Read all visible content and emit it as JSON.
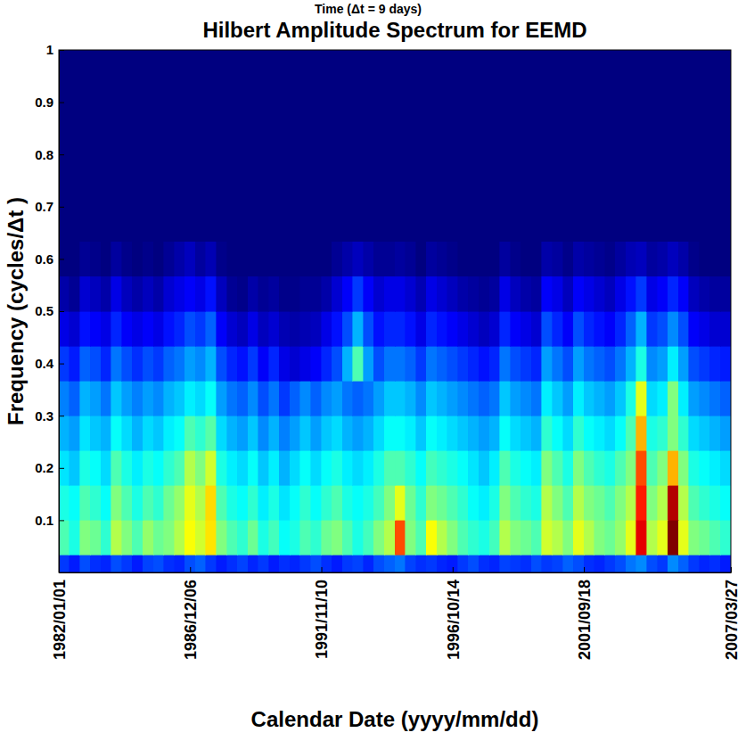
{
  "chart_data": {
    "type": "heatmap",
    "title": "Hilbert Amplitude Spectrum for EEMD",
    "annotation": "Time (Δt = 9 days)",
    "x_label": "Calendar Date (yyyy/mm/dd)",
    "y_label": "Frequency (cycles/Δt )",
    "color": "jet",
    "zlim": [
      0,
      1
    ],
    "xlim": [
      0,
      1024
    ],
    "xticks": [
      {
        "value": 0,
        "label": "1982/01/01"
      },
      {
        "value": 200,
        "label": "1986/12/06"
      },
      {
        "value": 400,
        "label": "1991/11/10"
      },
      {
        "value": 600,
        "label": "1996/10/14"
      },
      {
        "value": 800,
        "label": "2001/09/18"
      },
      {
        "value": 1024,
        "label": "2007/03/27"
      }
    ],
    "ylim": [
      0,
      1
    ],
    "yticks": [
      0.1,
      0.2,
      0.3,
      0.4,
      0.5,
      0.6,
      0.7,
      0.8,
      0.9,
      1
    ],
    "x_edges": [
      0,
      16,
      32,
      48,
      64,
      80,
      96,
      112,
      128,
      144,
      160,
      176,
      192,
      208,
      224,
      240,
      256,
      272,
      288,
      304,
      320,
      336,
      352,
      368,
      384,
      400,
      416,
      432,
      448,
      464,
      480,
      496,
      512,
      528,
      544,
      560,
      576,
      592,
      608,
      624,
      640,
      656,
      672,
      688,
      704,
      720,
      736,
      752,
      768,
      784,
      800,
      816,
      832,
      848,
      864,
      880,
      896,
      912,
      928,
      944,
      960,
      976,
      992,
      1008,
      1024
    ],
    "y_edges": [
      0,
      0.0333,
      0.1,
      0.1667,
      0.2333,
      0.3,
      0.3667,
      0.4333,
      0.5,
      0.5667,
      0.6333,
      1
    ],
    "z": [
      [
        0.18,
        0.15,
        0.2,
        0.17,
        0.16,
        0.2,
        0.18,
        0.15,
        0.19,
        0.2,
        0.17,
        0.16,
        0.2,
        0.22,
        0.18,
        0.15,
        0.17,
        0.19,
        0.16,
        0.18,
        0.15,
        0.17,
        0.16,
        0.18,
        0.2,
        0.17,
        0.15,
        0.18,
        0.19,
        0.16,
        0.2,
        0.22,
        0.24,
        0.19,
        0.17,
        0.18,
        0.16,
        0.15,
        0.18,
        0.2,
        0.17,
        0.16,
        0.19,
        0.18,
        0.17,
        0.2,
        0.18,
        0.19,
        0.22,
        0.2,
        0.17,
        0.16,
        0.18,
        0.2,
        0.24,
        0.26,
        0.2,
        0.18,
        0.26,
        0.22,
        0.18,
        0.16,
        0.17,
        0.15
      ],
      [
        0.45,
        0.4,
        0.5,
        0.48,
        0.42,
        0.55,
        0.5,
        0.45,
        0.52,
        0.48,
        0.5,
        0.55,
        0.62,
        0.58,
        0.65,
        0.5,
        0.45,
        0.42,
        0.48,
        0.4,
        0.44,
        0.38,
        0.4,
        0.45,
        0.42,
        0.48,
        0.5,
        0.45,
        0.4,
        0.44,
        0.5,
        0.55,
        0.8,
        0.5,
        0.45,
        0.62,
        0.55,
        0.5,
        0.45,
        0.42,
        0.4,
        0.44,
        0.55,
        0.5,
        0.48,
        0.45,
        0.58,
        0.55,
        0.5,
        0.6,
        0.55,
        0.5,
        0.48,
        0.52,
        0.6,
        0.9,
        0.55,
        0.6,
        1.0,
        0.6,
        0.5,
        0.48,
        0.45,
        0.42
      ],
      [
        0.4,
        0.38,
        0.45,
        0.42,
        0.38,
        0.5,
        0.45,
        0.4,
        0.45,
        0.42,
        0.48,
        0.52,
        0.6,
        0.55,
        0.66,
        0.45,
        0.4,
        0.38,
        0.42,
        0.36,
        0.4,
        0.35,
        0.38,
        0.42,
        0.38,
        0.42,
        0.45,
        0.4,
        0.38,
        0.4,
        0.44,
        0.5,
        0.6,
        0.48,
        0.42,
        0.5,
        0.48,
        0.45,
        0.42,
        0.38,
        0.36,
        0.4,
        0.5,
        0.45,
        0.42,
        0.4,
        0.55,
        0.5,
        0.45,
        0.55,
        0.5,
        0.48,
        0.45,
        0.5,
        0.55,
        0.85,
        0.5,
        0.55,
        0.95,
        0.55,
        0.45,
        0.42,
        0.4,
        0.38
      ],
      [
        0.35,
        0.32,
        0.4,
        0.38,
        0.34,
        0.45,
        0.4,
        0.36,
        0.4,
        0.38,
        0.42,
        0.45,
        0.55,
        0.5,
        0.58,
        0.4,
        0.36,
        0.34,
        0.38,
        0.32,
        0.36,
        0.3,
        0.34,
        0.38,
        0.34,
        0.38,
        0.4,
        0.36,
        0.34,
        0.36,
        0.4,
        0.45,
        0.45,
        0.42,
        0.38,
        0.44,
        0.42,
        0.4,
        0.38,
        0.35,
        0.32,
        0.36,
        0.45,
        0.4,
        0.38,
        0.36,
        0.5,
        0.45,
        0.4,
        0.5,
        0.45,
        0.42,
        0.4,
        0.45,
        0.5,
        0.8,
        0.45,
        0.5,
        0.7,
        0.5,
        0.4,
        0.38,
        0.36,
        0.34
      ],
      [
        0.3,
        0.28,
        0.35,
        0.32,
        0.3,
        0.38,
        0.34,
        0.3,
        0.34,
        0.32,
        0.36,
        0.38,
        0.45,
        0.42,
        0.46,
        0.34,
        0.3,
        0.28,
        0.32,
        0.26,
        0.3,
        0.25,
        0.28,
        0.32,
        0.28,
        0.32,
        0.34,
        0.3,
        0.28,
        0.3,
        0.34,
        0.38,
        0.38,
        0.36,
        0.32,
        0.38,
        0.36,
        0.34,
        0.32,
        0.3,
        0.28,
        0.3,
        0.38,
        0.34,
        0.32,
        0.3,
        0.42,
        0.38,
        0.34,
        0.42,
        0.38,
        0.36,
        0.34,
        0.38,
        0.45,
        0.7,
        0.4,
        0.42,
        0.5,
        0.42,
        0.34,
        0.32,
        0.3,
        0.28
      ],
      [
        0.25,
        0.22,
        0.3,
        0.28,
        0.24,
        0.32,
        0.28,
        0.25,
        0.28,
        0.26,
        0.3,
        0.32,
        0.36,
        0.34,
        0.38,
        0.28,
        0.24,
        0.22,
        0.26,
        0.2,
        0.24,
        0.18,
        0.22,
        0.26,
        0.22,
        0.26,
        0.28,
        0.24,
        0.22,
        0.24,
        0.28,
        0.32,
        0.32,
        0.3,
        0.26,
        0.32,
        0.3,
        0.28,
        0.26,
        0.24,
        0.22,
        0.24,
        0.32,
        0.28,
        0.26,
        0.24,
        0.36,
        0.32,
        0.28,
        0.36,
        0.32,
        0.3,
        0.28,
        0.32,
        0.4,
        0.6,
        0.34,
        0.36,
        0.5,
        0.36,
        0.28,
        0.26,
        0.24,
        0.22
      ],
      [
        0.18,
        0.15,
        0.22,
        0.2,
        0.16,
        0.24,
        0.2,
        0.17,
        0.2,
        0.18,
        0.22,
        0.24,
        0.28,
        0.26,
        0.3,
        0.2,
        0.16,
        0.14,
        0.18,
        0.12,
        0.16,
        0.1,
        0.08,
        0.1,
        0.12,
        0.16,
        0.2,
        0.3,
        0.45,
        0.28,
        0.2,
        0.24,
        0.24,
        0.22,
        0.18,
        0.24,
        0.22,
        0.2,
        0.18,
        0.16,
        0.14,
        0.16,
        0.24,
        0.2,
        0.18,
        0.16,
        0.28,
        0.24,
        0.2,
        0.28,
        0.24,
        0.22,
        0.2,
        0.24,
        0.3,
        0.4,
        0.26,
        0.28,
        0.36,
        0.28,
        0.2,
        0.18,
        0.16,
        0.15
      ],
      [
        0.1,
        0.08,
        0.14,
        0.12,
        0.1,
        0.16,
        0.12,
        0.1,
        0.12,
        0.1,
        0.14,
        0.16,
        0.2,
        0.18,
        0.22,
        0.12,
        0.08,
        0.06,
        0.1,
        0.06,
        0.08,
        0.05,
        0.04,
        0.05,
        0.06,
        0.1,
        0.14,
        0.2,
        0.3,
        0.2,
        0.14,
        0.16,
        0.16,
        0.14,
        0.1,
        0.16,
        0.14,
        0.12,
        0.1,
        0.08,
        0.06,
        0.08,
        0.16,
        0.12,
        0.1,
        0.08,
        0.2,
        0.16,
        0.12,
        0.2,
        0.16,
        0.14,
        0.12,
        0.16,
        0.22,
        0.3,
        0.18,
        0.2,
        0.26,
        0.2,
        0.12,
        0.1,
        0.08,
        0.08
      ],
      [
        0.04,
        0.02,
        0.08,
        0.06,
        0.04,
        0.1,
        0.06,
        0.04,
        0.06,
        0.04,
        0.08,
        0.1,
        0.12,
        0.1,
        0.14,
        0.06,
        0.02,
        0.01,
        0.04,
        0.02,
        0.03,
        0.01,
        0.01,
        0.02,
        0.02,
        0.04,
        0.08,
        0.12,
        0.18,
        0.12,
        0.08,
        0.1,
        0.1,
        0.08,
        0.05,
        0.1,
        0.08,
        0.06,
        0.04,
        0.03,
        0.02,
        0.03,
        0.1,
        0.06,
        0.04,
        0.03,
        0.12,
        0.1,
        0.06,
        0.12,
        0.1,
        0.08,
        0.06,
        0.1,
        0.14,
        0.18,
        0.1,
        0.12,
        0.16,
        0.12,
        0.06,
        0.04,
        0.03,
        0.03
      ],
      [
        0,
        0,
        0.02,
        0.01,
        0,
        0.03,
        0.01,
        0,
        0.01,
        0,
        0.02,
        0.04,
        0.06,
        0.03,
        0.05,
        0.01,
        0,
        0,
        0,
        0,
        0,
        0,
        0,
        0,
        0,
        0,
        0.02,
        0.04,
        0.06,
        0.04,
        0.02,
        0.02,
        0.03,
        0.02,
        0,
        0.03,
        0.02,
        0.01,
        0,
        0,
        0,
        0,
        0.03,
        0.01,
        0,
        0,
        0.04,
        0.03,
        0.01,
        0.04,
        0.03,
        0.02,
        0.01,
        0.03,
        0.05,
        0.06,
        0.03,
        0.04,
        0.06,
        0.04,
        0.01,
        0,
        0,
        0
      ],
      [
        0,
        0,
        0,
        0,
        0,
        0,
        0,
        0,
        0,
        0,
        0,
        0,
        0,
        0,
        0,
        0,
        0,
        0,
        0,
        0,
        0,
        0,
        0,
        0,
        0,
        0,
        0,
        0,
        0,
        0,
        0,
        0,
        0,
        0,
        0,
        0,
        0,
        0,
        0,
        0,
        0,
        0,
        0,
        0,
        0,
        0,
        0,
        0,
        0,
        0,
        0,
        0,
        0,
        0,
        0,
        0,
        0,
        0,
        0,
        0,
        0,
        0,
        0,
        0
      ]
    ]
  }
}
